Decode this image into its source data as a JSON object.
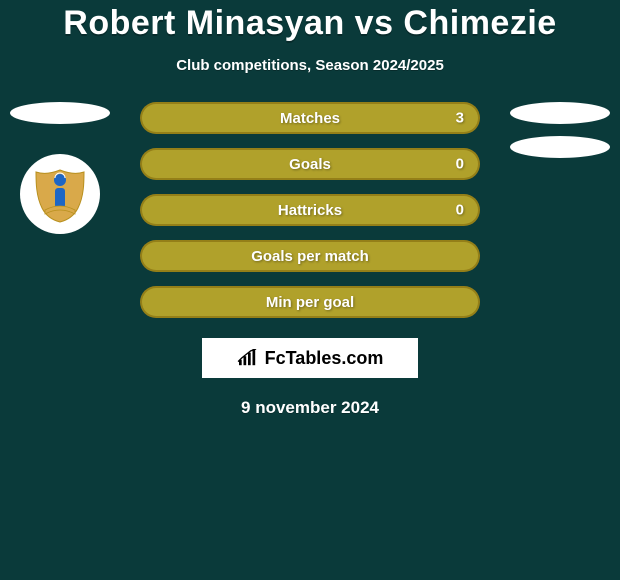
{
  "title": "Robert Minasyan vs Chimezie",
  "subtitle": "Club competitions, Season 2024/2025",
  "date": "9 november 2024",
  "brand": "FcTables.com",
  "colors": {
    "row_fill": "#b0a12b",
    "row_border": "#947f18",
    "background": "#0a3a3a"
  },
  "stats": [
    {
      "label": "Matches",
      "value": "3",
      "show_value": true
    },
    {
      "label": "Goals",
      "value": "0",
      "show_value": true
    },
    {
      "label": "Hattricks",
      "value": "0",
      "show_value": true
    },
    {
      "label": "Goals per match",
      "value": "",
      "show_value": false
    },
    {
      "label": "Min per goal",
      "value": "",
      "show_value": false
    }
  ],
  "left_ovals": 1,
  "right_ovals": 2,
  "show_club_logo_left": true
}
